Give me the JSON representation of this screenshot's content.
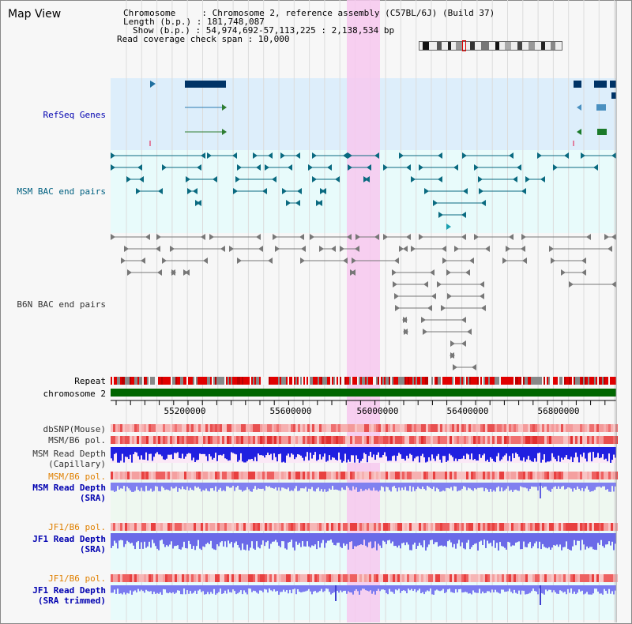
{
  "title": "Map View",
  "info": {
    "chromosome_line": "Chromosome     : Chromosome 2, reference assembly (C57BL/6J) (Build 37)",
    "length_line": "Length (b.p.) : 181,748,087",
    "show_line": "Show (b.p.) : 54,974,692-57,113,225 : 2,138,534 bp",
    "coverage_line": "Read coverage check span : 10,000"
  },
  "tracks": {
    "refseq": "RefSeq Genes",
    "msm_bac": "MSM BAC end pairs",
    "b6n_bac": "B6N BAC end pairs",
    "repeat": "Repeat",
    "chromosome": "chromosome 2",
    "dbsnp": "dbSNP(Mouse)",
    "msm_b6_pol": "MSM/B6 pol.",
    "msm_read_depth_cap_1": "MSM Read Depth",
    "msm_read_depth_cap_2": "(Capillary)",
    "msm_b6_pol_sra": "MSM/B6 pol.",
    "msm_read_depth_sra_1": "MSM Read Depth",
    "msm_read_depth_sra_2": "(SRA)",
    "jf1_b6_pol": "JF1/B6 pol.",
    "jf1_read_depth_1": "JF1 Read Depth",
    "jf1_read_depth_2": "(SRA)",
    "jf1_b6_pol_2": "JF1/B6 pol.",
    "jf1_read_depth_trim_1": "JF1 Read Depth",
    "jf1_read_depth_trim_2": "(SRA trimmed)"
  },
  "axis": {
    "ticks": [
      "55200000",
      "55600000",
      "56000000",
      "56400000",
      "56800000"
    ]
  },
  "colors": {
    "highlight": "#f7c8ee",
    "refseq_bg": "#ddeefb",
    "msm_bg": "#e8fbfb",
    "chromosome": "#006600",
    "msm_color": "#0a6a80",
    "b6n_color": "#777777"
  }
}
